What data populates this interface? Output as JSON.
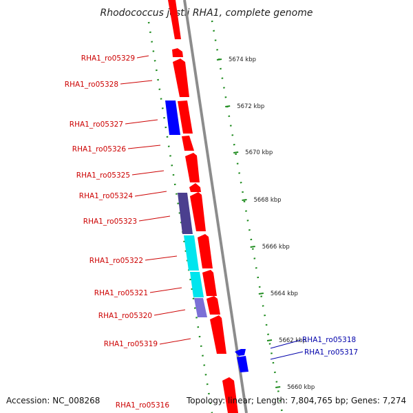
{
  "title": "Rhodococcus jostii RHA1, complete genome",
  "footer": {
    "accession": "Accession: NC_008268",
    "summary": "Topology: linear; Length: 7,804,765 bp; Genes: 7,274"
  },
  "colors": {
    "forward_gene": "#ff0000",
    "reverse_gene": "#0000ff",
    "dark_gene": "#4b3f8f",
    "cyan_gene": "#00e5ee",
    "purple_gene": "#7b6fd6",
    "forward_label": "#cc0000",
    "reverse_label": "#0000aa",
    "ruler_dots": "#1e8b1e",
    "backbone": "#8c8c8c"
  },
  "ruler_ticks": [
    "5674 kbp",
    "5672 kbp",
    "5670 kbp",
    "5668 kbp",
    "5666 kbp",
    "5664 kbp",
    "5662 kbp",
    "5660 kbp"
  ],
  "gene_labels_left": [
    "RHA1_ro05329",
    "RHA1_ro05328",
    "RHA1_ro05327",
    "RHA1_ro05326",
    "RHA1_ro05325",
    "RHA1_ro05324",
    "RHA1_ro05323",
    "RHA1_ro05322",
    "RHA1_ro05321",
    "RHA1_ro05320",
    "RHA1_ro05319",
    "RHA1_ro05316"
  ],
  "gene_labels_right": [
    "RHA1_ro05318",
    "RHA1_ro05317"
  ]
}
